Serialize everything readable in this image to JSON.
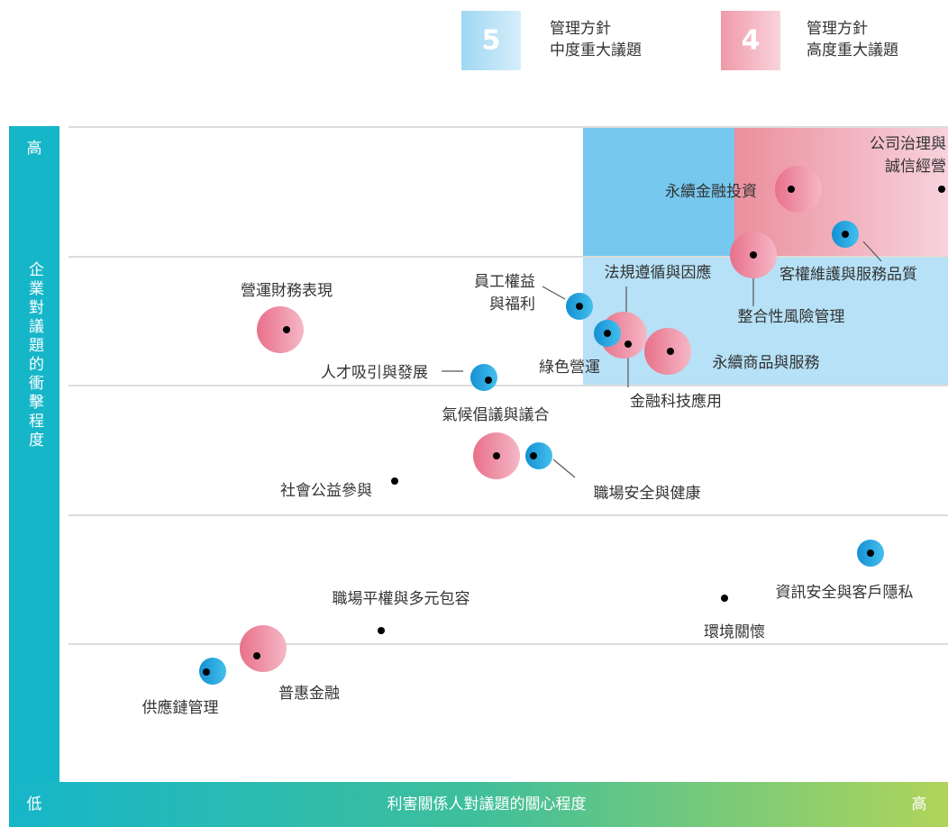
{
  "legend": [
    {
      "number": "5",
      "lines": [
        "管理方針",
        "中度重大議題"
      ]
    },
    {
      "number": "4",
      "lines": [
        "管理方針",
        "高度重大議題"
      ]
    }
  ],
  "axes": {
    "y_high": "高",
    "y_low": "低",
    "y_title": "企業對議題的衝擊程度",
    "x_title": "利害關係人對議題的關心程度",
    "x_high": "高"
  },
  "topics": [
    {
      "label": [
        "公司治理與",
        "誠信經營"
      ]
    },
    {
      "label": [
        "永續金融投資"
      ]
    },
    {
      "label": [
        "客權維護與服務品質"
      ]
    },
    {
      "label": [
        "整合性風險管理"
      ]
    },
    {
      "label": [
        "法規遵循與因應"
      ]
    },
    {
      "label": [
        "員工權益",
        "與福利"
      ]
    },
    {
      "label": [
        "營運財務表現"
      ]
    },
    {
      "label": [
        "綠色營運"
      ]
    },
    {
      "label": [
        "永續商品與服務"
      ]
    },
    {
      "label": [
        "金融科技應用"
      ]
    },
    {
      "label": [
        "人才吸引與發展"
      ]
    },
    {
      "label": [
        "氣候倡議與議合"
      ]
    },
    {
      "label": [
        "職場安全與健康"
      ]
    },
    {
      "label": [
        "社會公益參與"
      ]
    },
    {
      "label": [
        "資訊安全與客戶隱私"
      ]
    },
    {
      "label": [
        "環境關懷"
      ]
    },
    {
      "label": [
        "職場平權與多元包容"
      ]
    },
    {
      "label": [
        "普惠金融"
      ]
    },
    {
      "label": [
        "供應鏈管理"
      ]
    }
  ]
}
